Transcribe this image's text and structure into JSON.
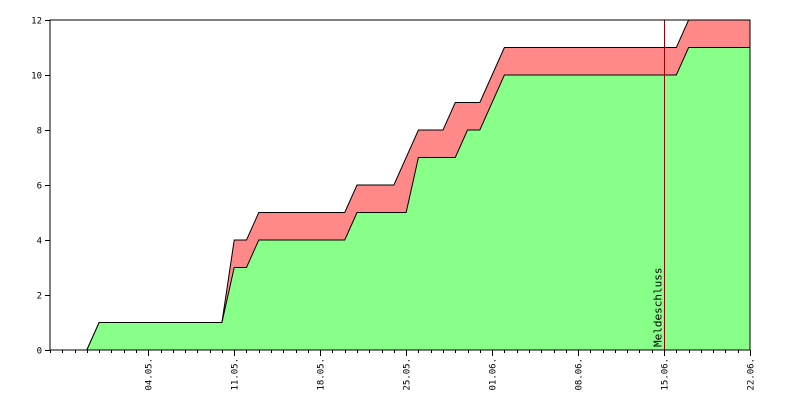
{
  "chart_data": {
    "type": "area",
    "title": "",
    "xlabel": "",
    "ylabel": "",
    "x_start": "2025-04-26",
    "x_end": "2025-06-22",
    "ylim": [
      0,
      12
    ],
    "y_ticks": [
      0,
      2,
      4,
      6,
      8,
      10,
      12
    ],
    "x_ticks": [
      {
        "label": "04.05.",
        "date": "2025-05-04"
      },
      {
        "label": "11.05.",
        "date": "2025-05-11"
      },
      {
        "label": "18.05.",
        "date": "2025-05-18"
      },
      {
        "label": "25.05.",
        "date": "2025-05-25"
      },
      {
        "label": "01.06.",
        "date": "2025-06-01"
      },
      {
        "label": "08.06.",
        "date": "2025-06-08"
      },
      {
        "label": "15.06.",
        "date": "2025-06-15"
      },
      {
        "label": "22.06.",
        "date": "2025-06-22"
      }
    ],
    "series": [
      {
        "color": "#88ff88",
        "points": [
          [
            "2025-04-29",
            0
          ],
          [
            "2025-04-30",
            1
          ],
          [
            "2025-05-10",
            1
          ],
          [
            "2025-05-11",
            3
          ],
          [
            "2025-05-12",
            3
          ],
          [
            "2025-05-13",
            4
          ],
          [
            "2025-05-20",
            4
          ],
          [
            "2025-05-21",
            5
          ],
          [
            "2025-05-25",
            5
          ],
          [
            "2025-05-26",
            7
          ],
          [
            "2025-05-29",
            7
          ],
          [
            "2025-05-30",
            8
          ],
          [
            "2025-05-31",
            8
          ],
          [
            "2025-06-02",
            10
          ],
          [
            "2025-06-16",
            10
          ],
          [
            "2025-06-17",
            11
          ],
          [
            "2025-06-22",
            11
          ]
        ]
      },
      {
        "color": "#ff8888",
        "points": [
          [
            "2025-04-29",
            0
          ],
          [
            "2025-04-30",
            1
          ],
          [
            "2025-05-10",
            1
          ],
          [
            "2025-05-11",
            4
          ],
          [
            "2025-05-12",
            4
          ],
          [
            "2025-05-13",
            5
          ],
          [
            "2025-05-20",
            5
          ],
          [
            "2025-05-21",
            6
          ],
          [
            "2025-05-24",
            6
          ],
          [
            "2025-05-26",
            8
          ],
          [
            "2025-05-28",
            8
          ],
          [
            "2025-05-29",
            9
          ],
          [
            "2025-05-31",
            9
          ],
          [
            "2025-06-01",
            10
          ],
          [
            "2025-06-02",
            11
          ],
          [
            "2025-06-16",
            11
          ],
          [
            "2025-06-17",
            12
          ],
          [
            "2025-06-22",
            12
          ]
        ]
      }
    ],
    "markers": [
      {
        "label": "Meldeschluss",
        "date": "2025-06-15",
        "color": "#990000"
      }
    ],
    "grid": false
  }
}
